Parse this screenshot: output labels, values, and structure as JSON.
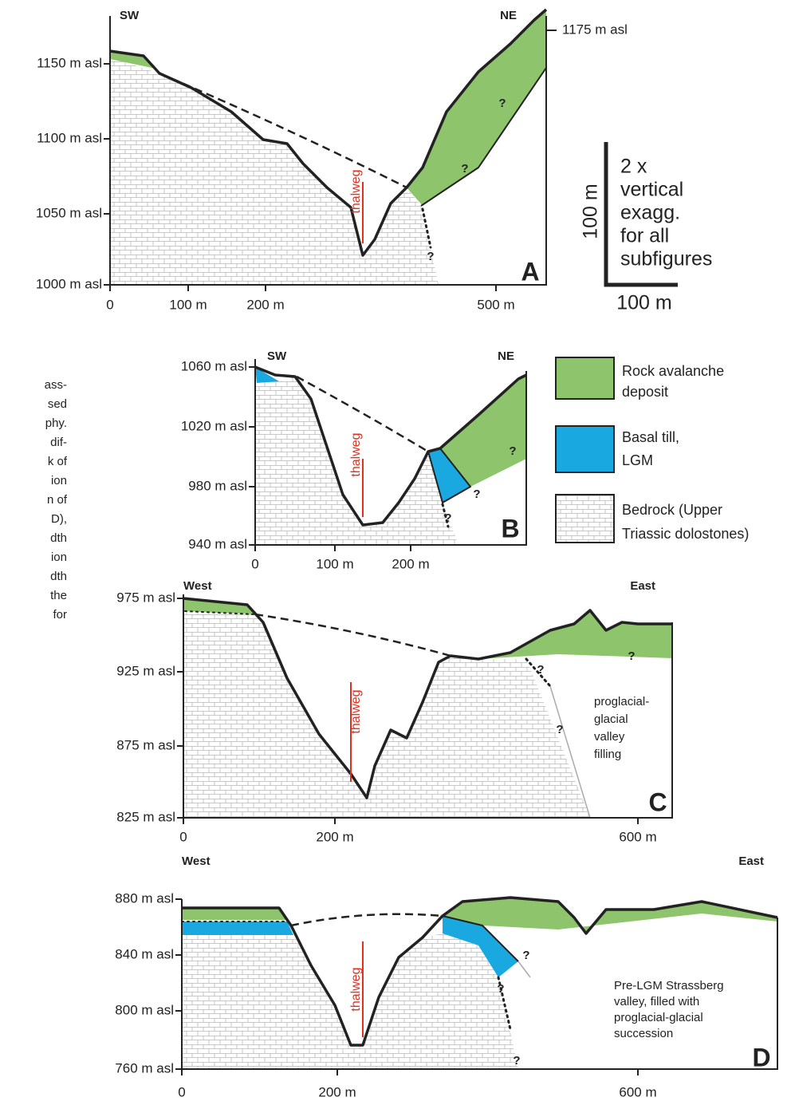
{
  "caption_fragments": [
    "ass-",
    "sed",
    "phy.",
    "dif-",
    "k of",
    "ion",
    "n of",
    "D),",
    "dth",
    "ion",
    "dth",
    "the",
    "for"
  ],
  "panels": [
    {
      "label": "A",
      "left": "SW",
      "right": "NE",
      "y_ticks": [
        "1150 m asl",
        "1100 m asl",
        "1050 m asl",
        "1000 m asl"
      ],
      "x_ticks": [
        "0",
        "100 m",
        "200 m",
        "500 m"
      ],
      "annotations": [
        "1175 m asl"
      ],
      "thalweg": "thalweg",
      "question_mark": "?"
    },
    {
      "label": "B",
      "left": "SW",
      "right": "NE",
      "y_ticks": [
        "1060 m asl",
        "1020 m asl",
        "980 m asl",
        "940 m asl"
      ],
      "x_ticks": [
        "0",
        "100 m",
        "200 m"
      ],
      "annotations": [],
      "thalweg": "thalweg",
      "question_mark": "?"
    },
    {
      "label": "C",
      "left": "West",
      "right": "East",
      "y_ticks": [
        "975 m asl",
        "925 m asl",
        "875 m asl",
        "825 m asl"
      ],
      "x_ticks": [
        "0",
        "200 m",
        "600 m"
      ],
      "annotations": [
        "proglacial-",
        "glacial",
        "valley",
        "filling"
      ],
      "thalweg": "thalweg",
      "question_mark": "?"
    },
    {
      "label": "D",
      "left": "West",
      "right": "East",
      "y_ticks": [
        "880 m asl",
        "840 m asl",
        "800 m asl",
        "760 m asl"
      ],
      "x_ticks": [
        "0",
        "200 m",
        "600 m"
      ],
      "annotations": [
        "Pre-LGM Strassberg",
        "valley, filled with",
        "proglacial-glacial",
        "succession"
      ],
      "thalweg": "thalweg",
      "question_mark": "?"
    }
  ],
  "scale_bar": {
    "vertical": "100 m",
    "horizontal": "100 m",
    "note": [
      "2 x",
      "vertical",
      "exagg.",
      "for all",
      "subfigures"
    ]
  },
  "legend": [
    {
      "lines": [
        "Rock avalanche",
        "deposit"
      ]
    },
    {
      "lines": [
        "Basal till,",
        "LGM"
      ]
    },
    {
      "lines": [
        "Bedrock (Upper",
        "Triassic dolostones)"
      ]
    }
  ]
}
